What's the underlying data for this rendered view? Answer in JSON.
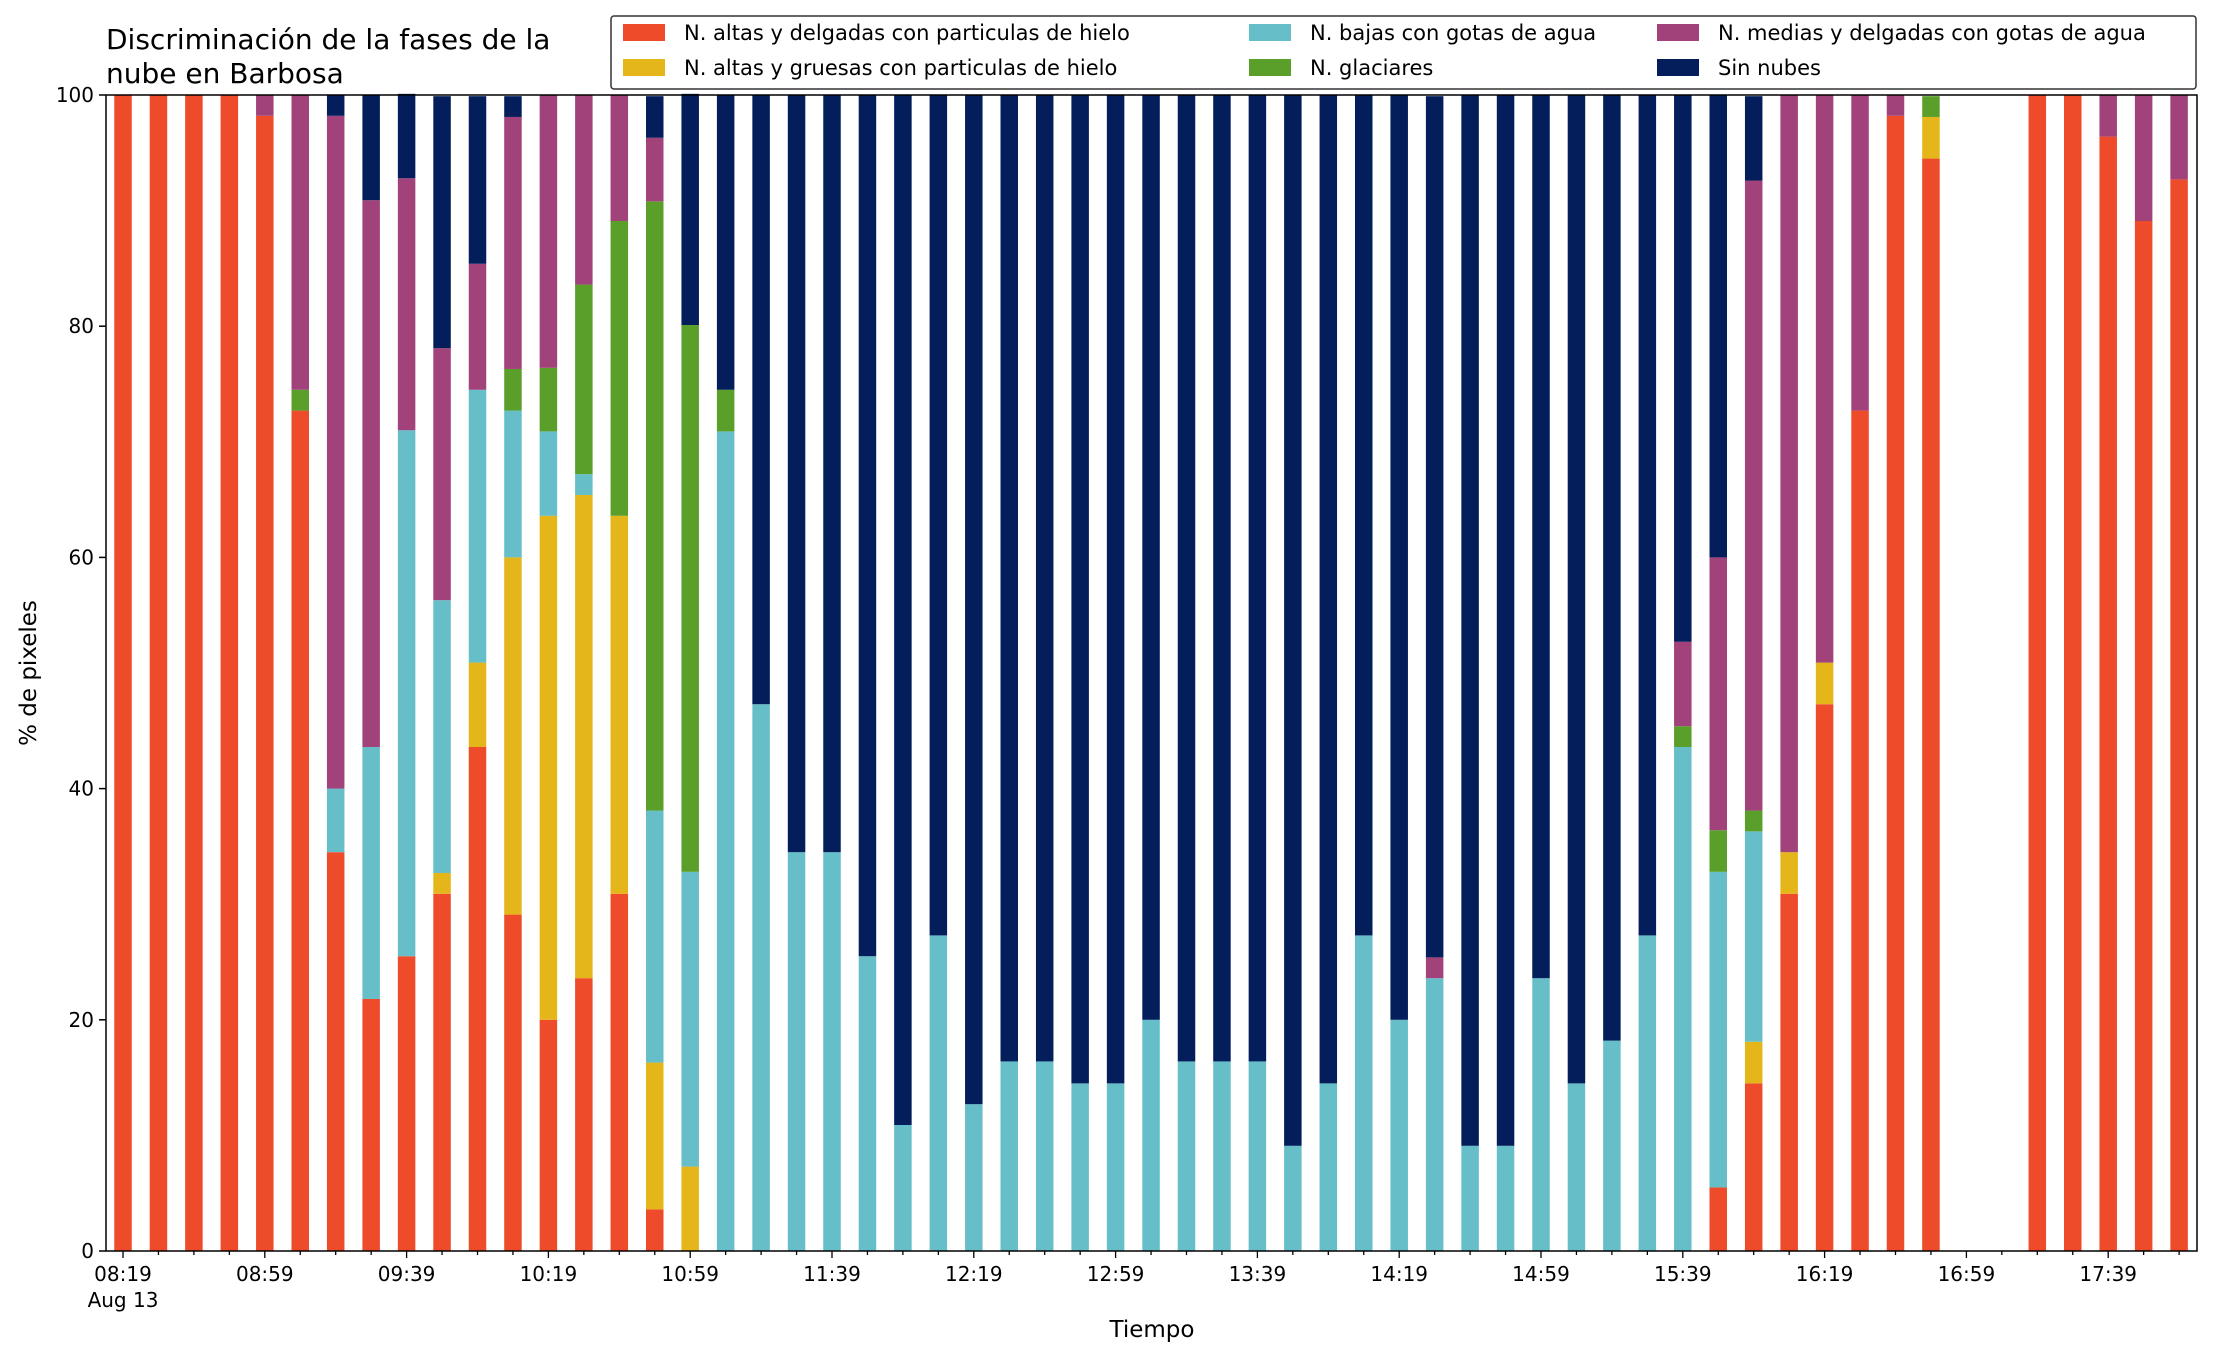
{
  "chart_data": {
    "type": "bar",
    "stacked": true,
    "title_line1": "Discriminación de la fases de la",
    "title_line2": "nube en Barbosa",
    "xlabel": "Tiempo",
    "ylabel": "% de pixeles",
    "ylim": [
      0,
      100
    ],
    "yticks": [
      0,
      20,
      40,
      60,
      80,
      100
    ],
    "x_start": "08:19",
    "x_interval_minutes": 10,
    "x_count": 59,
    "xtick_labels": [
      {
        "index": 0,
        "label": "08:19",
        "sublabel": "Aug 13"
      },
      {
        "index": 4,
        "label": "08:59"
      },
      {
        "index": 8,
        "label": "09:39"
      },
      {
        "index": 12,
        "label": "10:19"
      },
      {
        "index": 16,
        "label": "10:59"
      },
      {
        "index": 20,
        "label": "11:39"
      },
      {
        "index": 24,
        "label": "12:19"
      },
      {
        "index": 28,
        "label": "12:59"
      },
      {
        "index": 32,
        "label": "13:39"
      },
      {
        "index": 36,
        "label": "14:19"
      },
      {
        "index": 40,
        "label": "14:59"
      },
      {
        "index": 44,
        "label": "15:39"
      },
      {
        "index": 48,
        "label": "16:19"
      },
      {
        "index": 52,
        "label": "16:59"
      },
      {
        "index": 56,
        "label": "17:39"
      }
    ],
    "legend_position": "top",
    "series": [
      {
        "name": "N. altas y delgadas con particulas de hielo",
        "color": "#ee4b2b",
        "values": [
          100,
          100,
          100,
          100,
          98.2,
          72.7,
          34.5,
          21.8,
          25.5,
          30.9,
          43.6,
          29.1,
          20,
          23.6,
          30.9,
          3.6,
          0,
          0,
          0,
          0,
          0,
          0,
          0,
          0,
          0,
          0,
          0,
          0,
          0,
          0,
          0,
          0,
          0,
          0,
          0,
          0,
          0,
          0,
          0,
          0,
          0,
          0,
          0,
          0,
          0,
          5.5,
          14.5,
          30.9,
          47.3,
          72.7,
          98.2,
          94.5,
          0,
          0,
          100,
          100,
          96.4,
          89.1,
          92.7
        ]
      },
      {
        "name": "N. altas y gruesas con particulas de hielo",
        "color": "#e5b619",
        "values": [
          0,
          0,
          0,
          0,
          0,
          0,
          0,
          0,
          0,
          1.8,
          7.3,
          30.9,
          43.6,
          41.8,
          32.7,
          12.7,
          7.3,
          0,
          0,
          0,
          0,
          0,
          0,
          0,
          0,
          0,
          0,
          0,
          0,
          0,
          0,
          0,
          0,
          0,
          0,
          0,
          0,
          0,
          0,
          0,
          0,
          0,
          0,
          0,
          0,
          0,
          3.6,
          3.6,
          3.6,
          0,
          0,
          3.6,
          0,
          0,
          0,
          0,
          0,
          0,
          0
        ]
      },
      {
        "name": "N. bajas con gotas de agua",
        "color": "#66bfc8",
        "values": [
          0,
          0,
          0,
          0,
          0,
          0,
          5.5,
          21.8,
          45.5,
          23.6,
          23.6,
          12.7,
          7.3,
          1.8,
          0,
          21.8,
          25.5,
          70.9,
          47.3,
          34.5,
          34.5,
          25.5,
          10.9,
          27.3,
          12.7,
          16.4,
          16.4,
          14.5,
          14.5,
          20,
          16.4,
          16.4,
          16.4,
          9.1,
          14.5,
          27.3,
          20,
          23.6,
          9.1,
          9.1,
          23.6,
          14.5,
          18.2,
          27.3,
          43.6,
          27.3,
          18.2,
          0,
          0,
          0,
          0,
          0,
          0,
          0,
          0,
          0,
          0,
          0,
          0
        ]
      },
      {
        "name": "N. glaciares",
        "color": "#5b9f2b",
        "values": [
          0,
          0,
          0,
          0,
          0,
          1.8,
          0,
          0,
          0,
          0,
          0,
          3.6,
          5.5,
          16.4,
          25.5,
          52.7,
          47.3,
          3.6,
          0,
          0,
          0,
          0,
          0,
          0,
          0,
          0,
          0,
          0,
          0,
          0,
          0,
          0,
          0,
          0,
          0,
          0,
          0,
          0,
          0,
          0,
          0,
          0,
          0,
          0,
          1.8,
          3.6,
          1.8,
          0,
          0,
          0,
          0,
          1.8,
          0,
          0,
          0,
          0,
          0,
          0,
          0
        ]
      },
      {
        "name": "N. medias y delgadas con gotas de agua",
        "color": "#a1427a",
        "values": [
          0,
          0,
          0,
          0,
          1.8,
          25.5,
          58.2,
          47.3,
          21.8,
          21.8,
          10.9,
          21.8,
          23.6,
          16.4,
          10.9,
          5.5,
          0,
          0,
          0,
          0,
          0,
          0,
          0,
          0,
          0,
          0,
          0,
          0,
          0,
          0,
          0,
          0,
          0,
          0,
          0,
          0,
          0,
          1.8,
          0,
          0,
          0,
          0,
          0,
          0,
          7.3,
          23.6,
          54.5,
          65.5,
          49.1,
          27.3,
          1.8,
          0,
          0,
          0,
          0,
          0,
          3.6,
          10.9,
          7.3
        ]
      },
      {
        "name": "Sin nubes",
        "color": "#041e5c",
        "values": [
          0,
          0,
          0,
          0,
          0,
          0,
          1.8,
          9.1,
          7.3,
          21.8,
          14.5,
          1.8,
          0,
          0,
          0,
          3.6,
          20,
          25.5,
          52.7,
          65.5,
          65.5,
          74.5,
          89.1,
          72.7,
          87.3,
          83.6,
          83.6,
          85.5,
          85.5,
          80,
          83.6,
          83.6,
          83.6,
          90.9,
          85.5,
          72.7,
          80,
          74.5,
          90.9,
          90.9,
          76.4,
          85.5,
          81.8,
          72.7,
          47.3,
          40,
          7.3,
          0,
          0,
          0,
          0,
          0,
          0,
          0,
          0,
          0,
          0,
          0,
          0
        ]
      }
    ]
  }
}
